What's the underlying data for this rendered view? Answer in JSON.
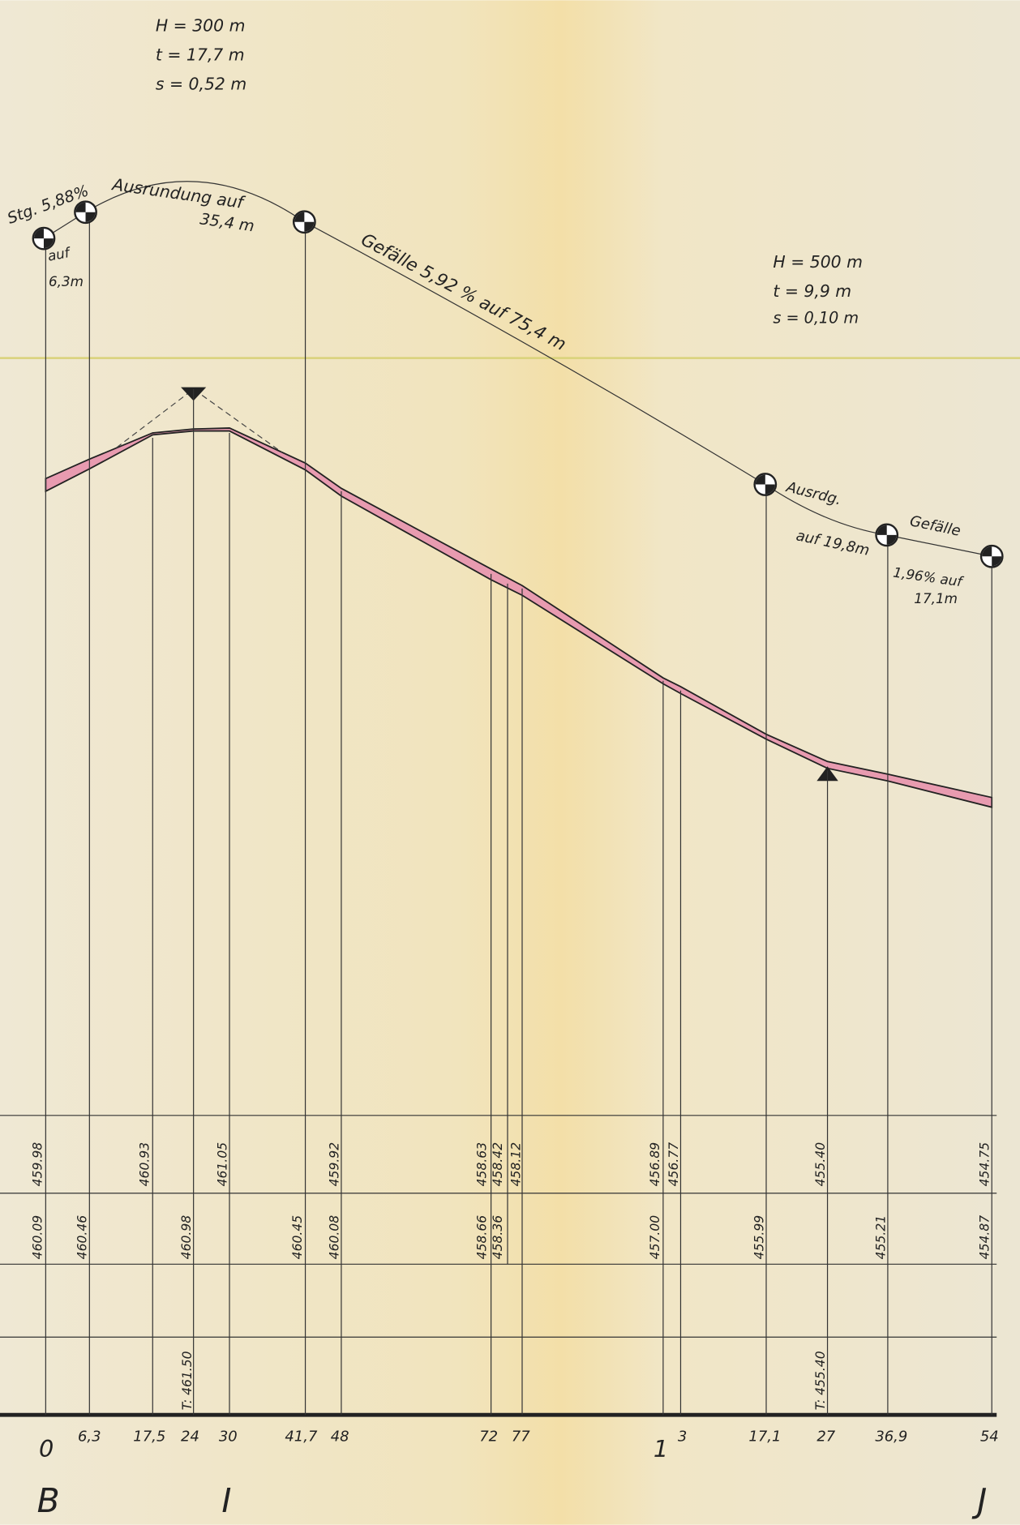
{
  "notes": [
    "H = 300 m",
    "t = 17,7 m",
    "s = 0,52 m",
    "Stg. 5,88%",
    "auf",
    "6,3m",
    "Ausrundung auf",
    "35,4 m",
    "Gefälle 5,92 % auf 75,4 m",
    "H = 500 m",
    "t = 9,9 m",
    "s = 0,10 m",
    "Ausrdg.",
    "auf 19,8m",
    "1,96% auf",
    "Gefälle",
    "17,1m"
  ],
  "stations": [
    "0",
    "6,3",
    "17,5",
    "24",
    "30",
    "41,7",
    "48",
    "72",
    "77",
    "1",
    "3",
    "17,1",
    "27",
    "36,9",
    "54"
  ],
  "elevations_row1": [
    "459.98",
    "460.93",
    "461.05",
    "459.92",
    "458.63",
    "458.42",
    "458.12",
    "456.89",
    "456.77",
    "455.40",
    "454.75"
  ],
  "elevations_row2": [
    "460.09",
    "460.46",
    "460.98",
    "460.45",
    "460.08",
    "458.66",
    "458.36",
    "457.00",
    "455.99",
    "455.21",
    "454.87"
  ],
  "elevations_row4": [
    "T: 461.50",
    "T: 455.40"
  ],
  "points": [
    "B",
    "I",
    "J"
  ]
}
